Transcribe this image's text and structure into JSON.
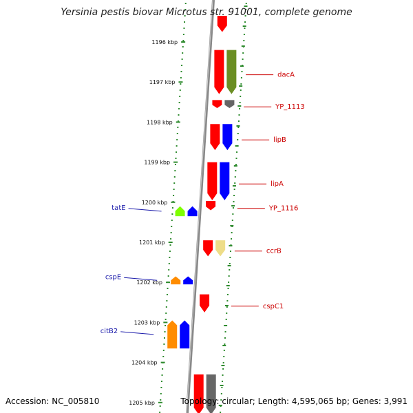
{
  "title": "Yersinia pestis biovar Microtus str. 91001, complete genome",
  "footer": {
    "accession": "Accession: NC_005810",
    "topology": "Topology: circular; Length: 4,595,065 bp; Genes: 3,991"
  },
  "colors": {
    "tick": "#2e8b2e",
    "dot": "#2e8b2e",
    "backbone": "#888888",
    "label_reverse": "#cc0000",
    "label_forward": "#1a1aaa"
  },
  "ticks": [
    "1196 kbp",
    "1197 kbp",
    "1198 kbp",
    "1199 kbp",
    "1200 kbp",
    "1201 kbp",
    "1202 kbp",
    "1203 kbp",
    "1204 kbp",
    "1205 kbp"
  ],
  "genes_reverse": [
    {
      "name": "",
      "kbp": 1195.35,
      "end": 1195.75,
      "color": "#ff0000"
    },
    {
      "name": "dacA",
      "kbp": 1196.2,
      "end": 1197.3,
      "color": "#ff0000",
      "cog": "#6b8e23"
    },
    {
      "name": "YP_1113",
      "kbp": 1197.45,
      "end": 1197.65,
      "color": "#ff0000",
      "cog": "#666666"
    },
    {
      "name": "lipB",
      "kbp": 1198.05,
      "end": 1198.7,
      "color": "#ff0000",
      "cog": "#0000ff"
    },
    {
      "name": "lipA",
      "kbp": 1199.0,
      "end": 1199.95,
      "color": "#ff0000",
      "cog": "#0000ff"
    },
    {
      "name": "YP_1116",
      "kbp": 1199.97,
      "end": 1200.2,
      "color": "#ff0000"
    },
    {
      "name": "ccrB",
      "kbp": 1200.95,
      "end": 1201.35,
      "color": "#ff0000",
      "cog": "#eedd88"
    },
    {
      "name": "cspC1",
      "kbp": 1202.3,
      "end": 1202.75,
      "color": "#ff0000"
    },
    {
      "name": "",
      "kbp": 1204.3,
      "end": 1205.3,
      "color": "#ff0000",
      "cog": "#666666"
    }
  ],
  "genes_forward": [
    {
      "name": "tatE",
      "kbp": 1200.1,
      "end": 1200.35,
      "color": "#7fff00",
      "cog": "#0000ff"
    },
    {
      "name": "cspE",
      "kbp": 1201.85,
      "end": 1202.05,
      "color": "#ff8c00",
      "cog": "#0000ff"
    },
    {
      "name": "citB2",
      "kbp": 1202.95,
      "end": 1203.65,
      "color": "#ff8c00",
      "cog": "#0000ff"
    }
  ]
}
